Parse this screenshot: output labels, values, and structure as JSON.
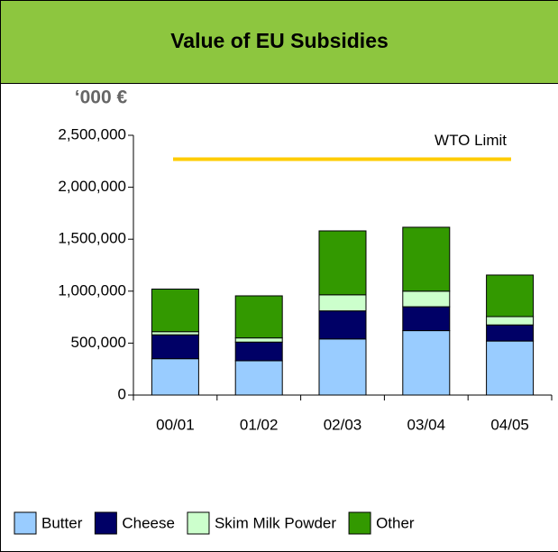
{
  "chart_data": {
    "type": "stacked_bar",
    "title": "Value of EU Subsidies",
    "y_axis_label": "‘000 €",
    "categories": [
      "00/01",
      "01/02",
      "02/03",
      "03/04",
      "04/05"
    ],
    "series": [
      {
        "name": "Butter",
        "color": "#99ccff",
        "values": [
          350000,
          330000,
          540000,
          620000,
          520000
        ]
      },
      {
        "name": "Cheese",
        "color": "#000066",
        "values": [
          230000,
          180000,
          270000,
          230000,
          155000
        ]
      },
      {
        "name": "Skim Milk Powder",
        "color": "#ccffcc",
        "values": [
          30000,
          40000,
          155000,
          150000,
          80000
        ]
      },
      {
        "name": "Other",
        "color": "#339900",
        "values": [
          410000,
          405000,
          615000,
          615000,
          400000
        ]
      }
    ],
    "reference_line": {
      "label": "WTO Limit",
      "value": 2270000,
      "color": "#ffcc00"
    },
    "ylim": [
      0,
      2500000
    ],
    "yticks": [
      0,
      {
        "value": 500000,
        "label": "500,000"
      },
      {
        "value": 1000000,
        "label": "1,000,000"
      },
      {
        "value": 1500000,
        "label": "1,500,000"
      },
      {
        "value": 2000000,
        "label": "2,000,000"
      },
      {
        "value": 2500000,
        "label": "2,500,000"
      }
    ],
    "legend": "bottom"
  }
}
